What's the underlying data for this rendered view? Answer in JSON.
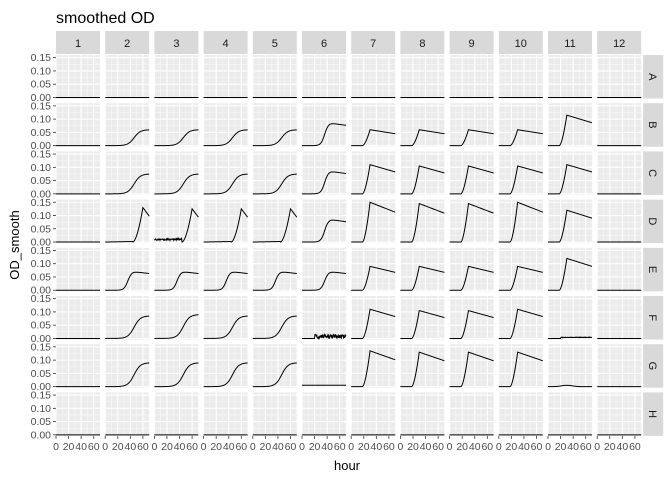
{
  "chart_data": {
    "type": "line",
    "title": "smoothed OD",
    "xlabel": "hour",
    "ylabel": "OD_smooth",
    "facet_columns": [
      "1",
      "2",
      "3",
      "4",
      "5",
      "6",
      "7",
      "8",
      "9",
      "10",
      "11",
      "12"
    ],
    "facet_rows": [
      "A",
      "B",
      "C",
      "D",
      "E",
      "F",
      "G",
      "H"
    ],
    "xlim": [
      0,
      70
    ],
    "ylim": [
      -0.004,
      0.16
    ],
    "x_ticks": [
      0,
      20,
      40,
      60
    ],
    "x_tick_labels": [
      "0",
      "20",
      "40",
      "60"
    ],
    "y_ticks": [
      0,
      0.05,
      0.1,
      0.15
    ],
    "y_tick_labels": [
      "0.00",
      "0.05",
      "0.10",
      "0.15"
    ],
    "grid": true,
    "wells": {
      "A": [
        "flat",
        "flat",
        "flat",
        "flat",
        "flat",
        "flat",
        "flat",
        "flat",
        "flat",
        "flat",
        "flat",
        "flat"
      ],
      "B": [
        "flat",
        "sigmoid_0.06",
        "sigmoid_0.06",
        "sigmoid_0.06",
        "sigmoid_0.06",
        "rise_0.085",
        "spike_0.06",
        "spike_0.06",
        "spike_0.06",
        "spike_0.06",
        "spike_0.115",
        "flat"
      ],
      "C": [
        "flat",
        "sigmoid_0.075",
        "sigmoid_0.075",
        "sigmoid_0.075",
        "sigmoid_0.075",
        "rise_0.085",
        "spike_0.11",
        "spike_0.105",
        "spike_0.105",
        "spike_0.105",
        "spike_0.11",
        "flat"
      ],
      "D": [
        "flat",
        "late_0.13",
        "late_noisy_0.125",
        "late_0.125",
        "late_0.125",
        "rise_0.085",
        "spike_0.15",
        "spike_0.145",
        "spike_0.145",
        "spike_0.15",
        "spike_0.12",
        "flat"
      ],
      "E": [
        "flat",
        "rise_0.07",
        "rise_0.07",
        "rise_0.07",
        "rise_0.07",
        "rise_0.07",
        "spike_0.09",
        "spike_0.09",
        "spike_0.09",
        "spike_0.09",
        "spike_0.12",
        "flat"
      ],
      "F": [
        "flat",
        "sigmoid_0.085",
        "sigmoid_0.09",
        "sigmoid_0.085",
        "sigmoid_0.085",
        "noisy_0.015",
        "spike_0.11",
        "spike_0.105",
        "spike_0.105",
        "spike_0.11",
        "low_0.005",
        "flat"
      ],
      "G": [
        "flat",
        "sigmoid_0.09",
        "sigmoid_0.09",
        "sigmoid_0.09",
        "sigmoid_0.09",
        "flat_0.005",
        "spike_0.135",
        "spike_0.13",
        "spike_0.13",
        "spike_0.13",
        "bump_0.005",
        "flat"
      ],
      "H": [
        "flat",
        "flat",
        "flat",
        "flat",
        "flat",
        "flat",
        "flat",
        "flat",
        "flat",
        "flat",
        "flat",
        "flat"
      ]
    }
  }
}
